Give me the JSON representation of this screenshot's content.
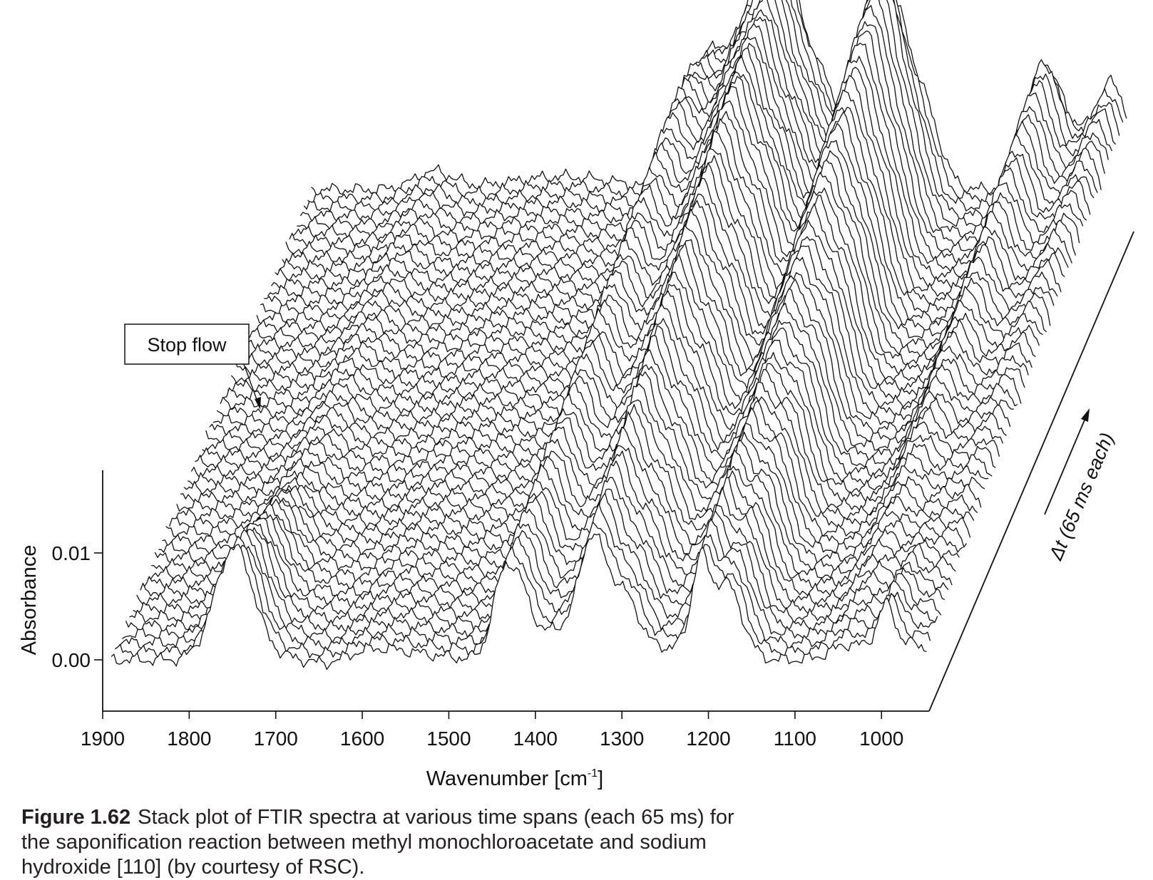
{
  "chart_data": {
    "type": "line",
    "subtype": "stacked-waterfall",
    "x_axis": {
      "label": "Wavenumber [cm",
      "label_superscript": "-1",
      "label_suffix": "]",
      "ticks": [
        1900,
        1800,
        1700,
        1600,
        1500,
        1400,
        1300,
        1200,
        1100,
        1000
      ],
      "range": [
        1900,
        945
      ],
      "reversed": true
    },
    "y_axis": {
      "label": "Absorbance",
      "ticks": [
        {
          "value": 0.0,
          "label": "0.00"
        },
        {
          "value": 0.01,
          "label": "0.01"
        }
      ],
      "range": [
        -0.004,
        0.0175
      ]
    },
    "depth_axis": {
      "label": "Δt (65 ms each)",
      "step_ms": 65,
      "n_spectra": 56
    },
    "annotation": {
      "text": "Stop flow",
      "index_from_front": 24
    },
    "peaks": [
      {
        "center": 1748,
        "width": 22,
        "front_height": 0.0105,
        "late_height": 0.0025,
        "peak_index": 18
      },
      {
        "center": 1440,
        "width": 12,
        "front_height": 0.0055,
        "late_height": 0.008,
        "peak_index": 50
      },
      {
        "center": 1420,
        "width": 14,
        "front_height": 0.006,
        "late_height": 0.01,
        "peak_index": 45
      },
      {
        "center": 1365,
        "width": 34,
        "front_height": 0.003,
        "late_height": 0.0205,
        "peak_index": 54
      },
      {
        "center": 1335,
        "width": 14,
        "front_height": 0.0085,
        "late_height": 0.009,
        "peak_index": 40
      },
      {
        "center": 1300,
        "width": 20,
        "front_height": 0.006,
        "late_height": 0.012,
        "peak_index": 40
      },
      {
        "center": 1225,
        "width": 26,
        "front_height": 0.0015,
        "late_height": 0.0215,
        "peak_index": 52
      },
      {
        "center": 1210,
        "width": 9,
        "front_height": 0.007,
        "late_height": 0.003,
        "peak_index": 20
      },
      {
        "center": 1180,
        "width": 18,
        "front_height": 0.007,
        "late_height": 0.008,
        "peak_index": 35
      },
      {
        "center": 1035,
        "width": 22,
        "front_height": 0.0015,
        "late_height": 0.0135,
        "peak_index": 53
      },
      {
        "center": 995,
        "width": 10,
        "front_height": 0.0045,
        "late_height": 0.0015,
        "peak_index": 12
      },
      {
        "center": 965,
        "width": 20,
        "front_height": 0.0015,
        "late_height": 0.01,
        "peak_index": 55
      }
    ]
  },
  "caption": {
    "label": "Figure 1.62",
    "text": "Stack plot of FTIR spectra at various time spans (each 65 ms) for the saponification reaction between methyl monochloroacetate and sodium hydroxide [110] (by courtesy of RSC)."
  }
}
